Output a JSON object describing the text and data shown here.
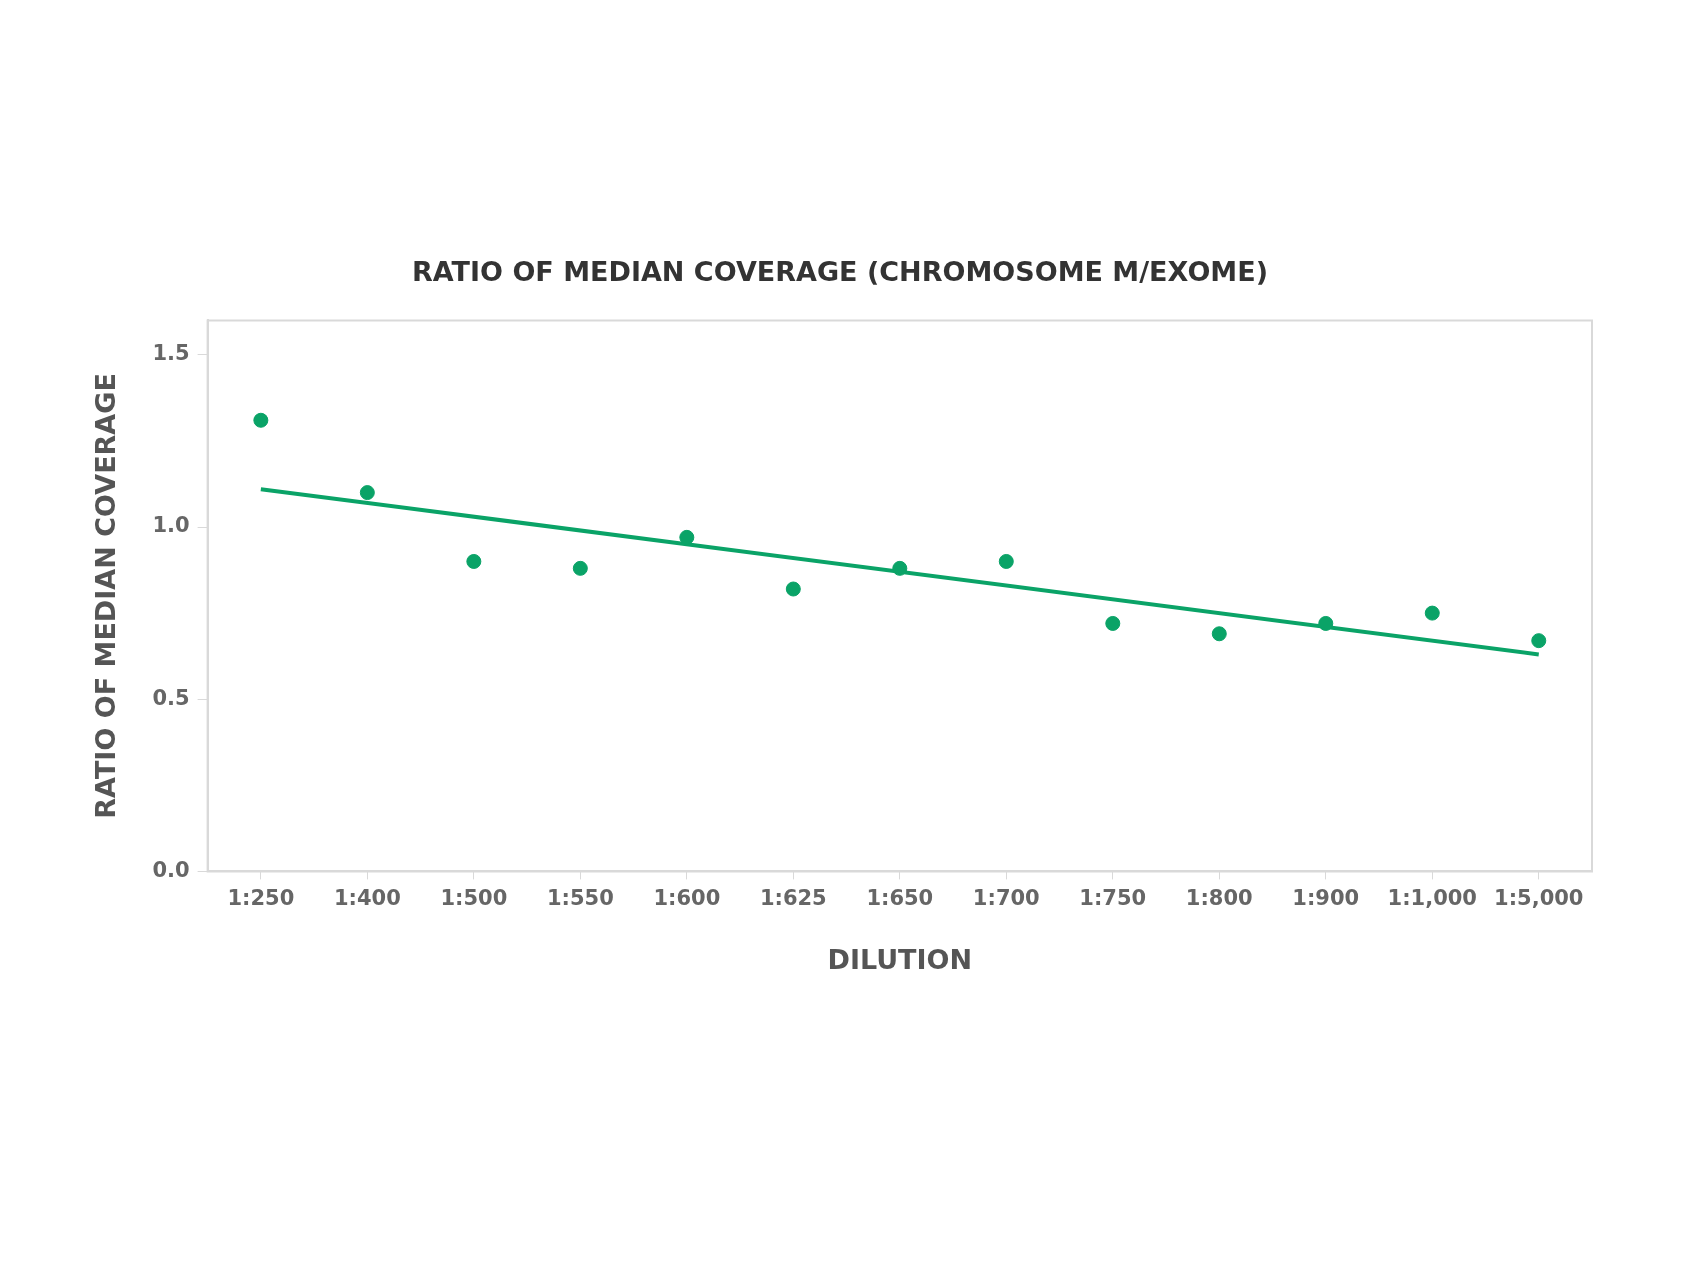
{
  "chart_data": {
    "type": "scatter",
    "title": "RATIO OF MEDIAN COVERAGE (CHROMOSOME M/EXOME)",
    "xlabel": "DILUTION",
    "ylabel": "RATIO OF MEDIAN COVERAGE",
    "categories": [
      "1:250",
      "1:400",
      "1:500",
      "1:550",
      "1:600",
      "1:625",
      "1:650",
      "1:700",
      "1:750",
      "1:800",
      "1:900",
      "1:1,000",
      "1:5,000"
    ],
    "series": [
      {
        "color": "#0aa367",
        "marker": "circle",
        "values": [
          1.31,
          1.1,
          0.9,
          0.88,
          0.97,
          0.82,
          0.88,
          0.9,
          0.72,
          0.69,
          0.72,
          0.75,
          0.67
        ]
      },
      {
        "type": "line",
        "color": "#0aa367",
        "marker": "none",
        "x": [
          "1:250",
          "1:5,000"
        ],
        "values": [
          1.11,
          0.63
        ]
      }
    ],
    "ylim": [
      0,
      1.6
    ],
    "yticks": [
      {
        "value": 0,
        "label": "0.0"
      },
      {
        "value": 0.5,
        "label": "0.5"
      },
      {
        "value": 1,
        "label": "1.0"
      },
      1.5
    ],
    "grid": false,
    "legend": false
  }
}
